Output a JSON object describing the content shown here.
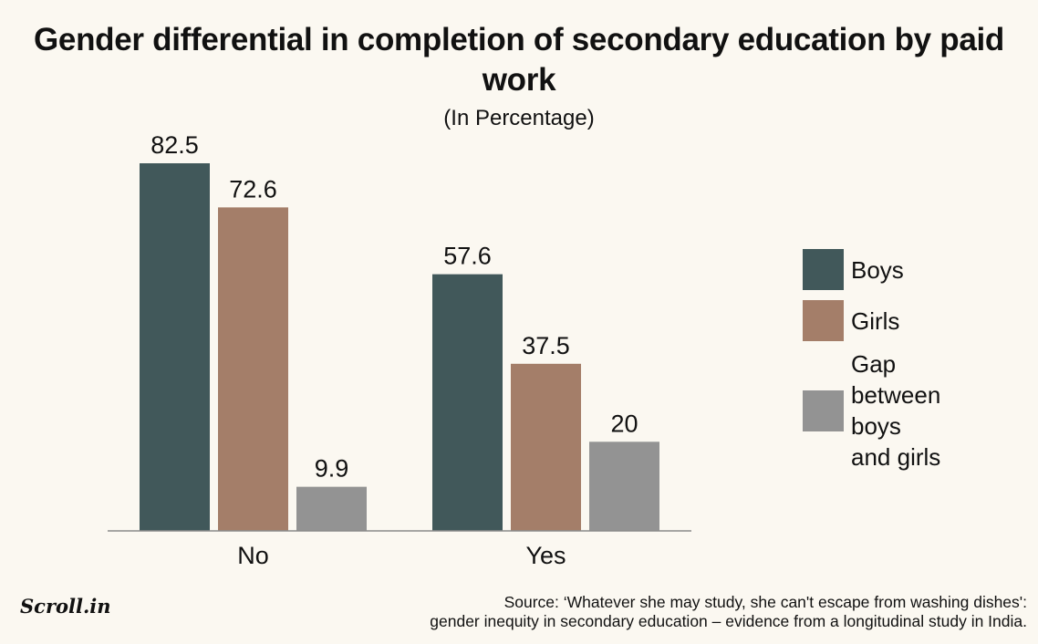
{
  "chart_data": {
    "type": "bar",
    "title": "Gender differential in completion of secondary education by paid work",
    "subtitle": "(In Percentage)",
    "categories": [
      "No",
      "Yes"
    ],
    "series": [
      {
        "name": "Boys",
        "color": "#41585a",
        "values": [
          82.5,
          57.6
        ],
        "labels": [
          "82.5",
          "57.6"
        ]
      },
      {
        "name": "Girls",
        "color": "#a47e69",
        "values": [
          72.6,
          37.5
        ],
        "labels": [
          "72.6",
          "37.5"
        ]
      },
      {
        "name": "Gap between boys and girls",
        "color": "#939393",
        "values": [
          9.9,
          20
        ],
        "labels": [
          "9.9",
          "20"
        ]
      }
    ],
    "ylim": [
      0,
      82.5
    ],
    "grid": false,
    "legend": "right"
  },
  "legend": {
    "boys": "Boys",
    "girls": "Girls",
    "gap_line1": "Gap between",
    "gap_line2": "boys and girls"
  },
  "logo": "Scroll.in",
  "source": {
    "line1": "Source: ‘Whatever she may study, she can't escape from washing dishes':",
    "line2": "gender inequity in secondary education – evidence from a longitudinal study in India."
  }
}
